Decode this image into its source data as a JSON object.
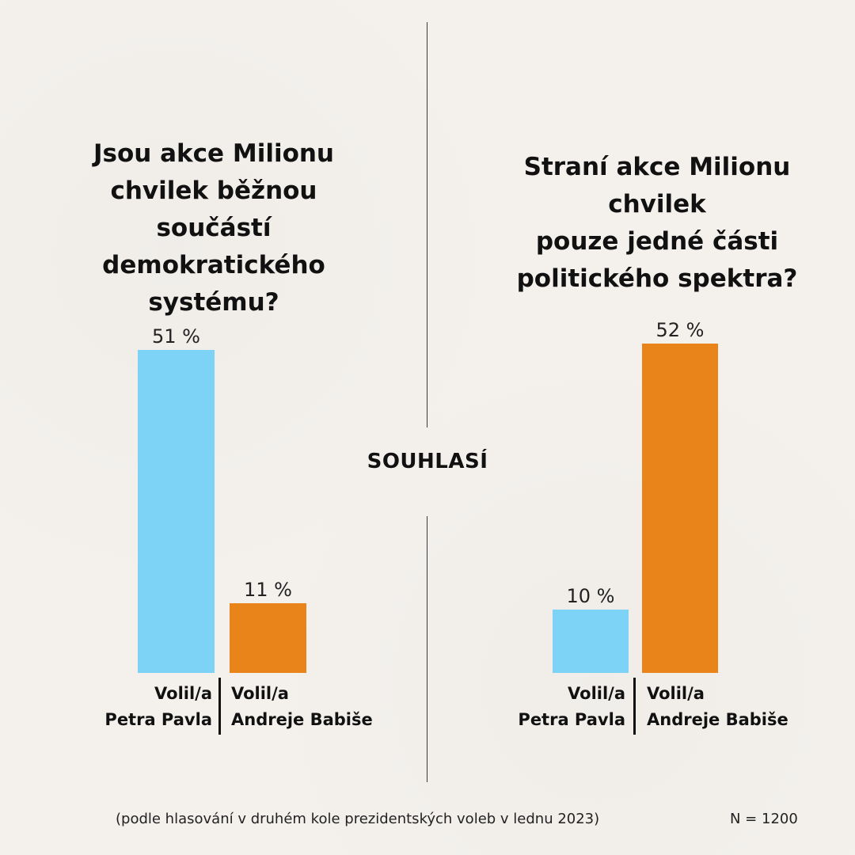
{
  "left_question": [
    "Jsou akce Milionu",
    "chvilek běžnou",
    "součástí",
    "demokratického",
    "systému?"
  ],
  "right_question": [
    "Straní akce Milionu",
    "chvilek",
    "pouze jedné části",
    "politického spektra?"
  ],
  "center_label": "SOUHLASÍ",
  "footnote": "(podle hlasování v druhém kole prezidentských voleb v lednu 2023)",
  "n_label": "N = 1200",
  "categories": [
    {
      "line1": "Volil/a",
      "line2": "Petra Pavla"
    },
    {
      "line1": "Volil/a",
      "line2": "Andreje Babiše"
    }
  ],
  "colors": {
    "pavel": "#7dd3f6",
    "babis": "#e8841a",
    "divider": "#3a3a3a"
  },
  "chart_data": [
    {
      "type": "bar",
      "title": "Jsou akce Milionu chvilek běžnou součástí demokratického systému?",
      "categories": [
        "Volil/a Petra Pavla",
        "Volil/a Andreje Babiše"
      ],
      "values": [
        51,
        11
      ],
      "value_labels": [
        "51 %",
        "11 %"
      ],
      "colors": [
        "#7dd3f6",
        "#e8841a"
      ],
      "ylim": [
        0,
        52
      ],
      "grid": false
    },
    {
      "type": "bar",
      "title": "Straní akce Milionu chvilek pouze jedné části politického spektra?",
      "categories": [
        "Volil/a Petra Pavla",
        "Volil/a Andreje Babiše"
      ],
      "values": [
        10,
        52
      ],
      "value_labels": [
        "10 %",
        "52 %"
      ],
      "colors": [
        "#7dd3f6",
        "#e8841a"
      ],
      "ylim": [
        0,
        52
      ],
      "grid": false
    }
  ]
}
